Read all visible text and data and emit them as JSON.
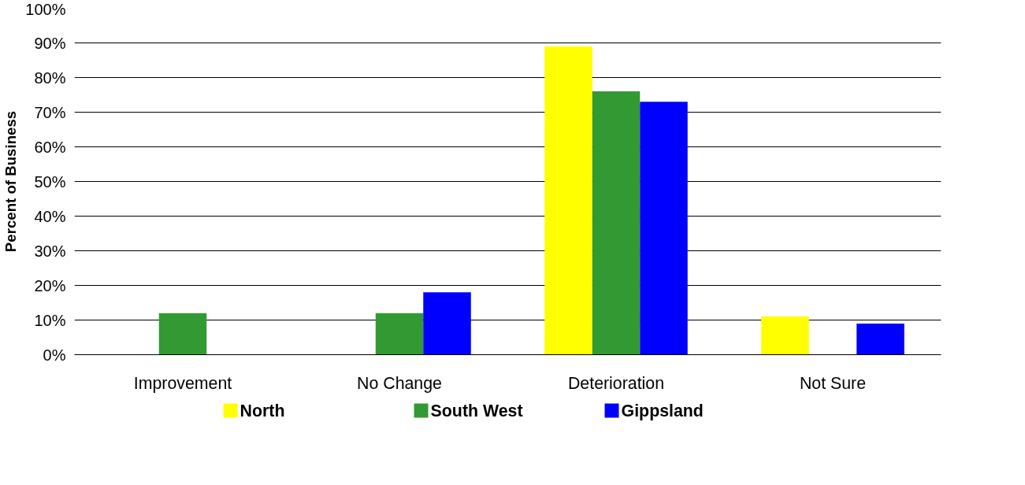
{
  "chart_data": {
    "type": "bar",
    "ylabel": "Percent of Business",
    "categories": [
      "Improvement",
      "No Change",
      "Deterioration",
      "Not Sure"
    ],
    "series": [
      {
        "name": "North",
        "color": "#ffff00",
        "values": [
          0,
          0,
          89,
          11
        ]
      },
      {
        "name": "South West",
        "color": "#339933",
        "values": [
          12,
          12,
          76,
          0
        ]
      },
      {
        "name": "Gippsland",
        "color": "#0000ff",
        "values": [
          0,
          18,
          73,
          9
        ]
      }
    ],
    "ylim": [
      0,
      100
    ],
    "yticks": [
      {
        "value": 0,
        "label": "0%"
      },
      {
        "value": 10,
        "label": "10%"
      },
      {
        "value": 20,
        "label": "20%"
      },
      {
        "value": 30,
        "label": "30%"
      },
      {
        "value": 40,
        "label": "40%"
      },
      {
        "value": 50,
        "label": "50%"
      },
      {
        "value": 60,
        "label": "60%"
      },
      {
        "value": 70,
        "label": "70%"
      },
      {
        "value": 80,
        "label": "80%"
      },
      {
        "value": 90,
        "label": "90%"
      },
      {
        "value": 100,
        "label": "100%"
      }
    ],
    "grid": "y",
    "legend": "bottom"
  }
}
